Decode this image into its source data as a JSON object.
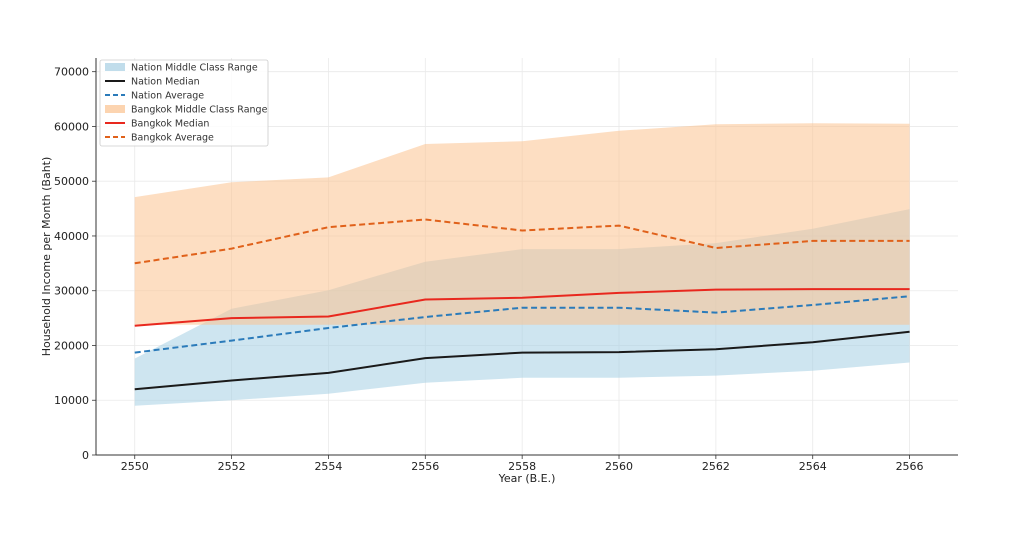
{
  "chart_data": {
    "type": "line",
    "title": "",
    "xlabel": "Year (B.E.)",
    "ylabel": "Household Income per Month (Baht)",
    "x": [
      2550,
      2552,
      2554,
      2556,
      2558,
      2560,
      2562,
      2564,
      2566
    ],
    "x_ticks": [
      "2550",
      "2552",
      "2554",
      "2556",
      "2558",
      "2560",
      "2562",
      "2564",
      "2566"
    ],
    "y_ticks": [
      "0",
      "10000",
      "20000",
      "30000",
      "40000",
      "50000",
      "60000",
      "70000"
    ],
    "xlim": [
      2549.2,
      2567.0
    ],
    "ylim": [
      0,
      72500
    ],
    "grid": true,
    "legend_position": "top-left",
    "bands": [
      {
        "name": "Nation Middle Class Range",
        "color": "#a6cfe3",
        "opacity": 0.55,
        "lower": [
          9000,
          10000,
          11200,
          13200,
          14100,
          14100,
          14500,
          15400,
          16900
        ],
        "upper": [
          17600,
          26700,
          30100,
          35300,
          37600,
          37600,
          38700,
          41300,
          44900
        ]
      },
      {
        "name": "Bangkok Middle Class Range",
        "color": "#fbc28f",
        "opacity": 0.55,
        "lower": [
          23800,
          23800,
          23800,
          23800,
          23800,
          23800,
          23800,
          23800,
          23800
        ],
        "upper": [
          47100,
          49800,
          50700,
          56800,
          57300,
          59200,
          60400,
          60600,
          60500
        ]
      }
    ],
    "series": [
      {
        "name": "Nation Median",
        "color": "#1a1a1a",
        "dash": "solid",
        "values": [
          12000,
          13600,
          15000,
          17700,
          18700,
          18800,
          19300,
          20600,
          22500
        ]
      },
      {
        "name": "Nation Average",
        "color": "#2b7bba",
        "dash": "dashed",
        "values": [
          18700,
          20900,
          23200,
          25200,
          26900,
          26900,
          26000,
          27400,
          29000
        ]
      },
      {
        "name": "Bangkok Median",
        "color": "#e8281e",
        "dash": "solid",
        "values": [
          23600,
          25000,
          25300,
          28400,
          28700,
          29600,
          30200,
          30300,
          30300
        ]
      },
      {
        "name": "Bangkok Average",
        "color": "#e0611a",
        "dash": "dashed",
        "values": [
          35000,
          37700,
          41600,
          43000,
          41000,
          41900,
          37800,
          39100,
          39100
        ]
      }
    ],
    "legend": [
      {
        "label": "Nation Middle Class Range",
        "kind": "band",
        "color": "#a6cfe3"
      },
      {
        "label": "Nation Median",
        "kind": "line",
        "color": "#1a1a1a",
        "dash": "solid"
      },
      {
        "label": "Nation Average",
        "kind": "line",
        "color": "#2b7bba",
        "dash": "dashed"
      },
      {
        "label": "Bangkok Middle Class Range",
        "kind": "band",
        "color": "#fbc28f"
      },
      {
        "label": "Bangkok Median",
        "kind": "line",
        "color": "#e8281e",
        "dash": "solid"
      },
      {
        "label": "Bangkok Average",
        "kind": "line",
        "color": "#e0611a",
        "dash": "dashed"
      }
    ]
  }
}
